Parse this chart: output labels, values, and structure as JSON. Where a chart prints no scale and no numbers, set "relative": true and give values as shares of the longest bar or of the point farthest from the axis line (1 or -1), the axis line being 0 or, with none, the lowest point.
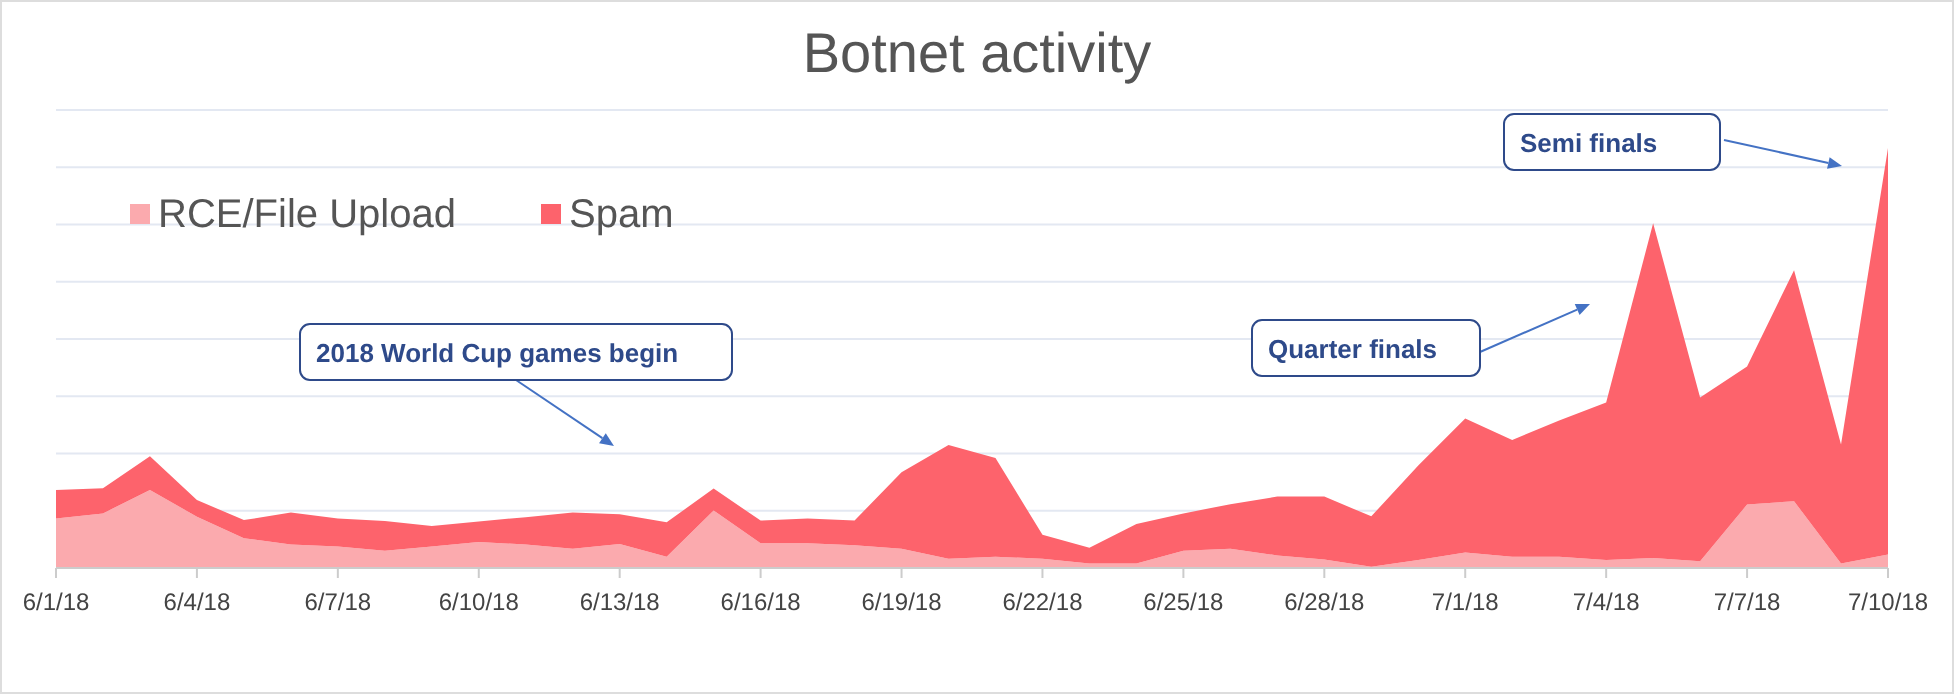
{
  "chart_data": {
    "type": "area",
    "title": "Botnet activity",
    "relative": true,
    "stacked": true,
    "grid": "y",
    "legend": "top left",
    "categories": [
      "6/1/18",
      null,
      null,
      "6/4/18",
      null,
      null,
      "6/7/18",
      null,
      null,
      "6/10/18",
      null,
      null,
      "6/13/18",
      null,
      null,
      "6/16/18",
      null,
      null,
      "6/19/18",
      null,
      null,
      "6/22/18",
      null,
      null,
      "6/25/18",
      null,
      null,
      "6/28/18",
      null,
      null,
      "7/1/18",
      null,
      null,
      "7/4/18",
      null,
      null,
      "7/7/18",
      null,
      null,
      "7/10/18"
    ],
    "series": [
      {
        "name": "RCE/File Upload",
        "color": "#fbaaae",
        "values": [
          0.118,
          0.13,
          0.186,
          0.122,
          0.071,
          0.056,
          0.051,
          0.041,
          0.051,
          0.062,
          0.056,
          0.046,
          0.057,
          0.027,
          0.137,
          0.059,
          0.059,
          0.054,
          0.046,
          0.022,
          0.027,
          0.022,
          0.011,
          0.011,
          0.041,
          0.046,
          0.03,
          0.02,
          0.003,
          0.019,
          0.037,
          0.027,
          0.027,
          0.019,
          0.024,
          0.016,
          0.151,
          0.159,
          0.011,
          0.032
        ]
      },
      {
        "name": "Spam",
        "color": "#fd636c",
        "values": [
          0.068,
          0.06,
          0.08,
          0.04,
          0.043,
          0.076,
          0.067,
          0.071,
          0.049,
          0.049,
          0.065,
          0.086,
          0.071,
          0.082,
          0.052,
          0.054,
          0.059,
          0.059,
          0.182,
          0.271,
          0.235,
          0.057,
          0.037,
          0.094,
          0.089,
          0.106,
          0.14,
          0.15,
          0.12,
          0.225,
          0.319,
          0.278,
          0.324,
          0.375,
          0.797,
          0.39,
          0.329,
          0.55,
          0.283,
          0.968
        ]
      }
    ],
    "annotations": [
      "2018 World Cup games begin",
      "Quarter finals",
      "Semi finals"
    ]
  }
}
